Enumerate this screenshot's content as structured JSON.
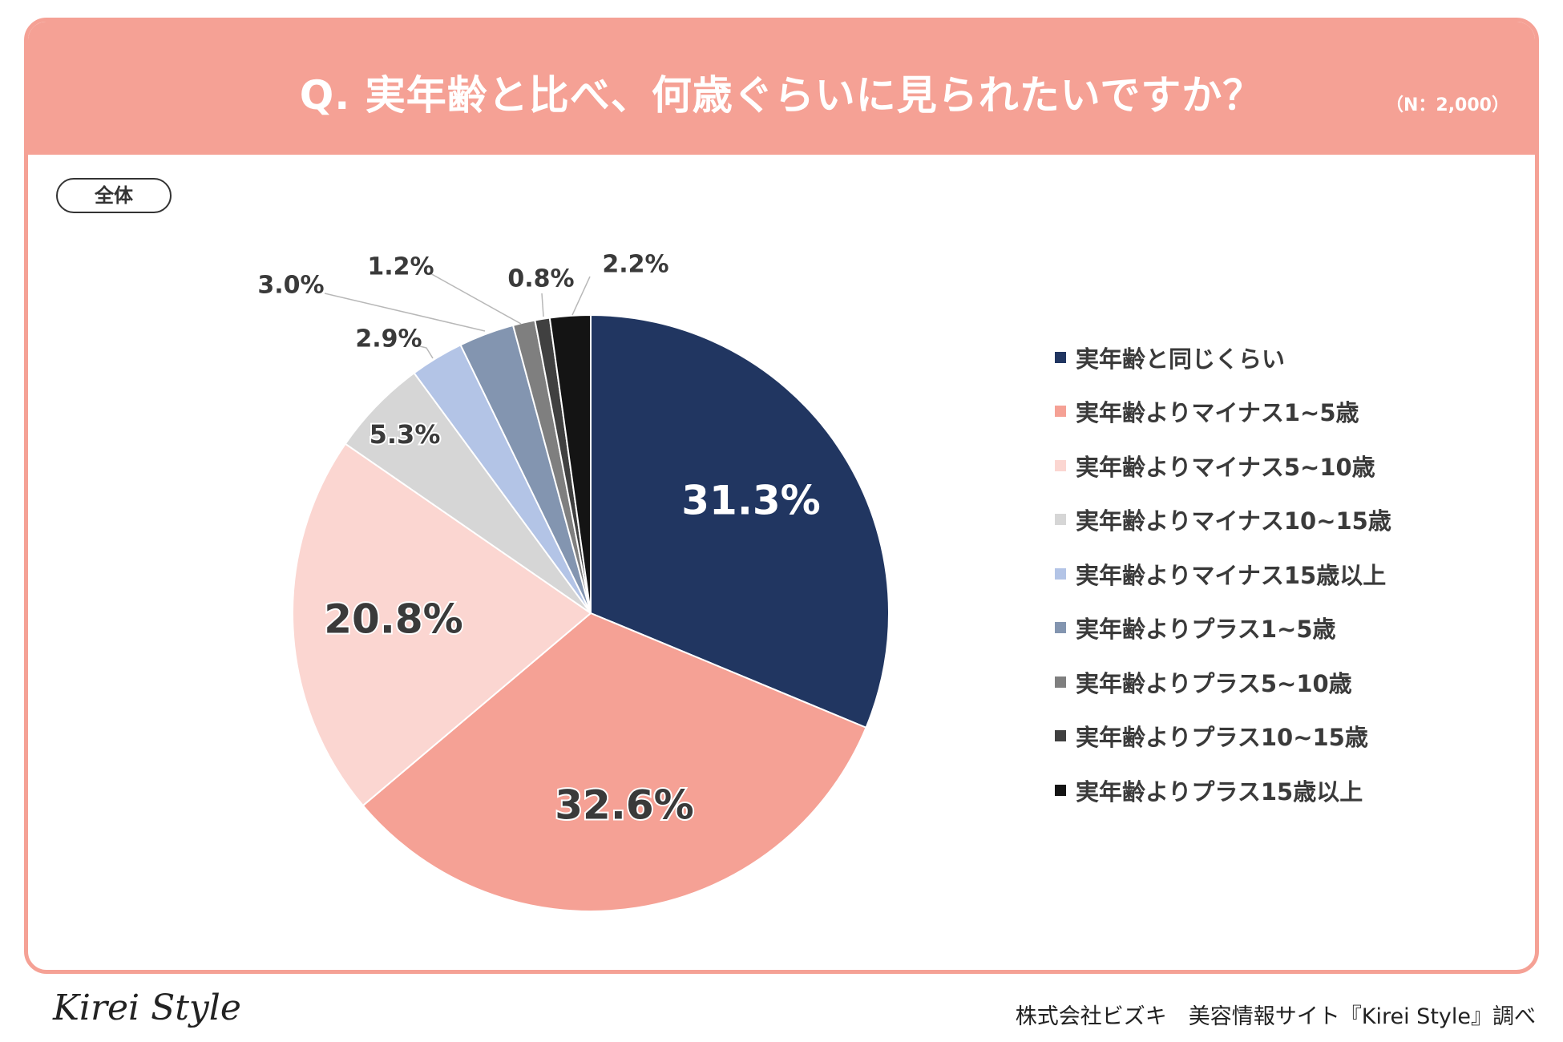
{
  "header": {
    "title": "Q. 実年齢と比べ、何歳ぐらいに見られたいですか？",
    "sample": "（N：2,000）"
  },
  "pill_label": "全体",
  "colors": {
    "accent": "#f5a195"
  },
  "chart_data": {
    "type": "pie",
    "title": "Q. 実年齢と比べ、何歳ぐらいに見られたいですか？",
    "legend_position": "right",
    "start_angle": "12 o'clock, clockwise",
    "slices": [
      {
        "name": "実年齢と同じくらい",
        "value": 31.3,
        "label": "31.3%",
        "color": "#213661"
      },
      {
        "name": "実年齢よりマイナス1~5歳",
        "value": 32.6,
        "label": "32.6%",
        "color": "#f5a195"
      },
      {
        "name": "実年齢よりマイナス5~10歳",
        "value": 20.8,
        "label": "20.8%",
        "color": "#fbd6d1"
      },
      {
        "name": "実年齢よりマイナス10~15歳",
        "value": 5.3,
        "label": "5.3%",
        "color": "#d6d6d6"
      },
      {
        "name": "実年齢よりマイナス15歳以上",
        "value": 2.9,
        "label": "2.9%",
        "color": "#b3c4e6"
      },
      {
        "name": "実年齢よりプラス1~5歳",
        "value": 3.0,
        "label": "3.0%",
        "color": "#8395b0"
      },
      {
        "name": "実年齢よりプラス5~10歳",
        "value": 1.2,
        "label": "1.2%",
        "color": "#7f7f7f"
      },
      {
        "name": "実年齢よりプラス10~15歳",
        "value": 0.8,
        "label": "0.8%",
        "color": "#404040"
      },
      {
        "name": "実年齢よりプラス15歳以上",
        "value": 2.2,
        "label": "2.2%",
        "color": "#141414"
      }
    ]
  },
  "footer": {
    "logo": "Kirei Style",
    "credit": "株式会社ビズキ　美容情報サイト『Kirei Style』調べ"
  }
}
